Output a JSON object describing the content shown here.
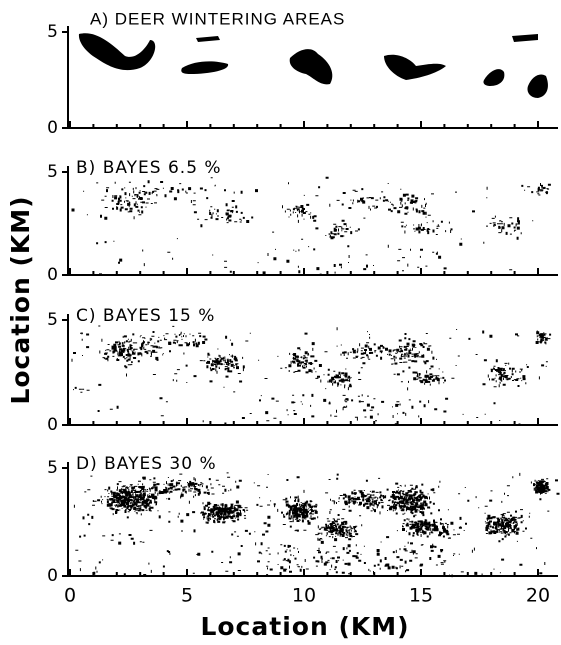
{
  "panels": [
    {
      "label": "A)   DEER   WINTERING   AREAS",
      "yticks": [
        "5",
        "0"
      ]
    },
    {
      "label": "B)  BAYES  6.5  %",
      "yticks": [
        "5",
        "0"
      ]
    },
    {
      "label": "C)  BAYES  15  %",
      "yticks": [
        "5",
        "0"
      ]
    },
    {
      "label": "D)  BAYES  30  %",
      "yticks": [
        "5",
        "0"
      ]
    }
  ],
  "xticks": [
    "0",
    "5",
    "10",
    "15",
    "20"
  ],
  "y_axis_label": "Location  (KM)",
  "x_axis_label": "Location  (KM)"
}
